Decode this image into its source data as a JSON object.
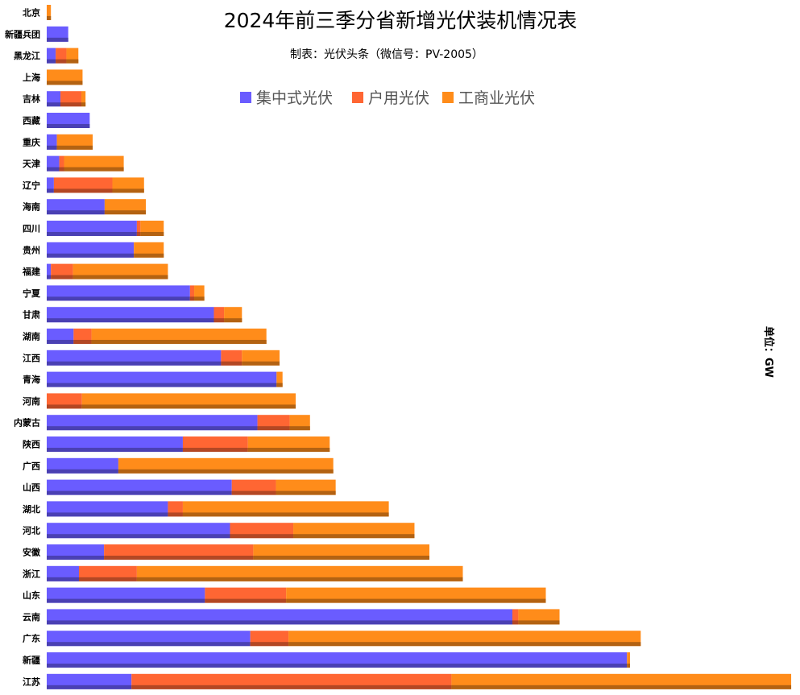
{
  "chart_data": {
    "type": "bar",
    "orientation": "horizontal",
    "stacked": true,
    "title": "2024年前三季分省新增光伏装机情况表",
    "subtitle": "制表：光伏头条（微信号：PV-2005）",
    "unit_label": "单位：GW",
    "categories": [
      "北京",
      "新疆兵团",
      "黑龙江",
      "上海",
      "吉林",
      "西藏",
      "重庆",
      "天津",
      "辽宁",
      "海南",
      "四川",
      "贵州",
      "福建",
      "宁夏",
      "甘肃",
      "湖南",
      "江西",
      "青海",
      "河南",
      "内蒙古",
      "陕西",
      "广西",
      "山西",
      "湖北",
      "河北",
      "安徽",
      "浙江",
      "山东",
      "云南",
      "广东",
      "新疆",
      "江苏"
    ],
    "series": [
      {
        "name": "集中式光伏",
        "color": "#6a5cff",
        "values": [
          0,
          0.36,
          0.15,
          0,
          0.23,
          0.72,
          0.17,
          0.21,
          0.12,
          0.97,
          1.51,
          1.46,
          0.07,
          2.4,
          2.8,
          0.45,
          2.92,
          3.85,
          0,
          3.53,
          2.28,
          1.2,
          3.1,
          2.03,
          3.07,
          0.96,
          0.54,
          2.65,
          7.8,
          3.41,
          9.72,
          1.42
        ]
      },
      {
        "name": "户用光伏",
        "color": "#ff6633",
        "values": [
          0,
          0,
          0.18,
          0,
          0.35,
          0,
          0,
          0.08,
          0.98,
          0,
          0.06,
          0,
          0.37,
          0.07,
          0.17,
          0.3,
          0.35,
          0,
          0.59,
          0.54,
          1.09,
          0,
          0.74,
          0.25,
          1.06,
          2.5,
          0.97,
          1.36,
          0.1,
          0.64,
          0,
          5.36
        ]
      },
      {
        "name": "工商业光伏",
        "color": "#ff8c1a",
        "values": [
          0.07,
          0,
          0.2,
          0.6,
          0.07,
          0,
          0.6,
          1.0,
          0.53,
          0.69,
          0.39,
          0.5,
          1.59,
          0.17,
          0.3,
          2.93,
          0.63,
          0.1,
          3.58,
          0.34,
          1.37,
          3.6,
          1.0,
          3.45,
          2.03,
          2.95,
          5.46,
          4.35,
          0.69,
          5.9,
          0.05,
          5.69
        ]
      }
    ],
    "xlim": [
      0,
      12.5
    ],
    "grid": false,
    "legend_position": "top"
  }
}
